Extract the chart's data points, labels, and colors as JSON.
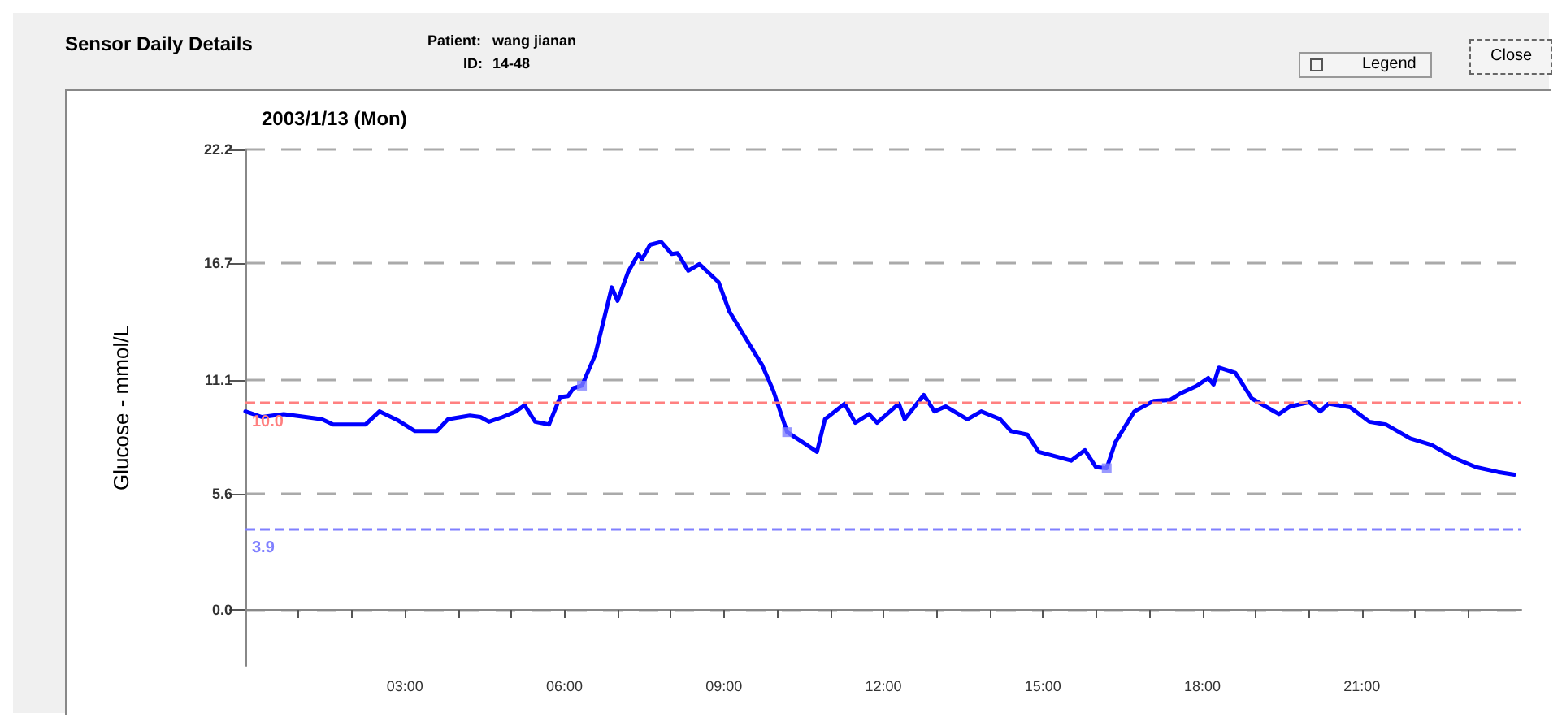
{
  "chart_data": {
    "type": "line",
    "title": "Sensor Daily Details",
    "subtitle": "2003/1/13 (Mon)",
    "ylabel": "Glucose - mmol/L",
    "annotations": [
      "Patient:",
      "wang jianan",
      "ID:",
      "14-48",
      "Legend",
      "Close"
    ],
    "xlim": [
      0,
      24
    ],
    "xticks": [
      {
        "value": 1,
        "label": null
      },
      {
        "value": 2,
        "label": null
      },
      {
        "value": 3,
        "label": "03:00"
      },
      {
        "value": 4,
        "label": null
      },
      {
        "value": 5,
        "label": null
      },
      {
        "value": 6,
        "label": "06:00"
      },
      {
        "value": 7,
        "label": null
      },
      {
        "value": 8,
        "label": null
      },
      {
        "value": 9,
        "label": "09:00"
      },
      {
        "value": 10,
        "label": null
      },
      {
        "value": 11,
        "label": null
      },
      {
        "value": 12,
        "label": "12:00"
      },
      {
        "value": 13,
        "label": null
      },
      {
        "value": 14,
        "label": null
      },
      {
        "value": 15,
        "label": "15:00"
      },
      {
        "value": 16,
        "label": null
      },
      {
        "value": 17,
        "label": null
      },
      {
        "value": 18,
        "label": "18:00"
      },
      {
        "value": 19,
        "label": null
      },
      {
        "value": 20,
        "label": null
      },
      {
        "value": 21,
        "label": "21:00"
      },
      {
        "value": 22,
        "label": null
      },
      {
        "value": 23,
        "label": null
      }
    ],
    "ylim": [
      -2.7,
      22.2
    ],
    "yticks": [
      {
        "value": 0,
        "label": "0.0"
      },
      5.6,
      11.1,
      16.7,
      22.2
    ],
    "grid": "y",
    "marker": "none",
    "line_style": "solid",
    "ref_lines": [
      {
        "axis": "y",
        "value": 10,
        "label": "10.0",
        "color": "#ff8080",
        "line_style": "dashed"
      },
      {
        "axis": "y",
        "value": 3.9,
        "label": "3.9",
        "color": "#8080ff",
        "line_style": "dashed"
      }
    ],
    "series": [
      {
        "color": "#0000ff",
        "x": [
          0,
          0.31,
          0.72,
          1.13,
          1.44,
          1.65,
          2.26,
          2.52,
          2.88,
          3.19,
          3.6,
          3.81,
          4.22,
          4.42,
          4.58,
          4.84,
          5.09,
          5.25,
          5.45,
          5.71,
          5.92,
          6.07,
          6.17,
          6.33,
          6.58,
          6.89,
          7.0,
          7.2,
          7.39,
          7.46,
          7.61,
          7.82,
          8.02,
          8.13,
          8.33,
          8.54,
          8.9,
          9.1,
          9.41,
          9.72,
          9.93,
          10.19,
          10.49,
          10.75,
          10.9,
          11.27,
          11.47,
          11.73,
          11.88,
          12.29,
          12.4,
          12.76,
          12.96,
          13.17,
          13.58,
          13.84,
          14.2,
          14.4,
          14.71,
          14.92,
          15.53,
          15.79,
          16.0,
          16.2,
          16.36,
          16.72,
          17.08,
          17.39,
          17.59,
          17.9,
          18.11,
          18.21,
          18.31,
          18.62,
          18.93,
          19.44,
          19.65,
          20.01,
          20.22,
          20.37,
          20.78,
          21.14,
          21.45,
          21.91,
          22.32,
          22.74,
          23.15,
          23.56,
          23.87
        ],
        "values": [
          9.57,
          9.3,
          9.44,
          9.3,
          9.19,
          8.94,
          8.94,
          9.57,
          9.12,
          8.62,
          8.62,
          9.19,
          9.37,
          9.3,
          9.07,
          9.3,
          9.57,
          9.87,
          9.07,
          8.94,
          10.26,
          10.31,
          10.69,
          10.81,
          12.3,
          15.55,
          14.9,
          16.3,
          17.16,
          16.9,
          17.6,
          17.74,
          17.16,
          17.2,
          16.35,
          16.67,
          15.8,
          14.4,
          13.1,
          11.8,
          10.56,
          8.57,
          8.07,
          7.62,
          9.19,
          9.94,
          9.02,
          9.44,
          9.02,
          9.94,
          9.19,
          10.36,
          9.57,
          9.81,
          9.19,
          9.57,
          9.19,
          8.62,
          8.45,
          7.62,
          7.2,
          7.7,
          6.88,
          6.83,
          8.07,
          9.57,
          10.07,
          10.12,
          10.44,
          10.81,
          11.18,
          10.86,
          11.68,
          11.43,
          10.19,
          9.44,
          9.81,
          10.01,
          9.57,
          9.94,
          9.77,
          9.07,
          8.94,
          8.27,
          7.94,
          7.32,
          6.88,
          6.65,
          6.52
        ]
      },
      {
        "type": "scatter",
        "marker": "square",
        "color": "#8080ff",
        "x": [
          6.33,
          10.19,
          16.2
        ],
        "values": [
          10.81,
          8.57,
          6.83
        ]
      }
    ]
  }
}
